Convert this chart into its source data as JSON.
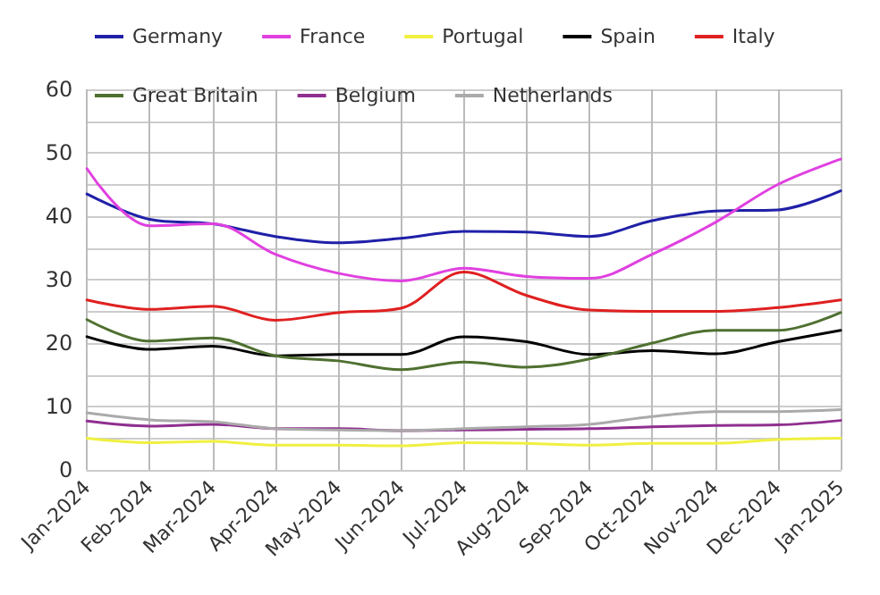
{
  "chart_data": {
    "type": "line",
    "categories": [
      "Jan-2024",
      "Feb-2024",
      "Mar-2024",
      "Apr-2024",
      "May-2024",
      "Jun-2024",
      "Jul-2024",
      "Aug-2024",
      "Sep-2024",
      "Oct-2024",
      "Nov-2024",
      "Dec-2024",
      "Jan-2025"
    ],
    "series": [
      {
        "name": "Germany",
        "color": "#2020a8",
        "values": [
          43.5,
          39.5,
          38.8,
          36.8,
          35.8,
          36.5,
          37.6,
          37.5,
          36.8,
          39.3,
          40.8,
          41.0,
          44.0
        ]
      },
      {
        "name": "France",
        "color": "#e040e0",
        "values": [
          47.5,
          38.5,
          38.8,
          34.0,
          31.0,
          29.8,
          31.8,
          30.5,
          30.2,
          34.0,
          39.0,
          45.0,
          49.0
        ]
      },
      {
        "name": "Portugal",
        "color": "#f0f040",
        "values": [
          5.0,
          4.3,
          4.5,
          3.9,
          3.9,
          3.8,
          4.3,
          4.2,
          3.9,
          4.2,
          4.2,
          4.8,
          5.0
        ]
      },
      {
        "name": "Spain",
        "color": "#000000",
        "values": [
          21.0,
          19.0,
          19.5,
          18.0,
          18.2,
          18.2,
          21.0,
          20.2,
          18.2,
          18.8,
          18.3,
          20.2,
          22.0
        ]
      },
      {
        "name": "Italy",
        "color": "#e02020",
        "values": [
          26.8,
          25.3,
          25.8,
          23.6,
          24.8,
          25.5,
          31.2,
          27.5,
          25.2,
          25.0,
          25.0,
          25.6,
          26.8
        ]
      },
      {
        "name": "Great Britain",
        "color": "#4f7030",
        "values": [
          23.7,
          20.3,
          20.8,
          18.0,
          17.2,
          15.8,
          17.0,
          16.2,
          17.5,
          20.0,
          22.0,
          22.0,
          24.8
        ]
      },
      {
        "name": "Belgium",
        "color": "#8f2f8f",
        "values": [
          7.7,
          6.9,
          7.2,
          6.5,
          6.5,
          6.2,
          6.3,
          6.4,
          6.5,
          6.8,
          7.0,
          7.1,
          7.8
        ]
      },
      {
        "name": "Netherlands",
        "color": "#aaaaaa",
        "values": [
          9.0,
          7.9,
          7.6,
          6.5,
          6.3,
          6.2,
          6.5,
          6.8,
          7.2,
          8.4,
          9.2,
          9.2,
          9.5
        ]
      }
    ],
    "ylim": [
      0,
      60
    ],
    "yticks": [
      0,
      {
        "value": 5,
        "label": null
      },
      10,
      {
        "value": 15,
        "label": null
      },
      20,
      {
        "value": 25,
        "label": null
      },
      30,
      {
        "value": 35,
        "label": null
      },
      40,
      {
        "value": 45,
        "label": null
      },
      50,
      {
        "value": 55,
        "label": null
      },
      60
    ],
    "grid": true,
    "legend": "top",
    "marker": "none",
    "line_style": "solid"
  }
}
